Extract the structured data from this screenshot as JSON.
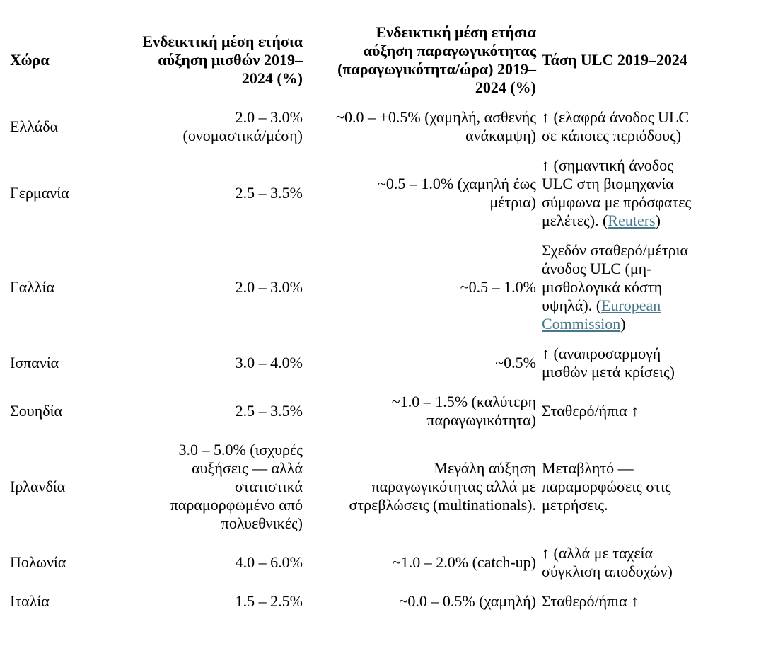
{
  "page": {
    "background_color": "#ffffff",
    "text_color": "#000000",
    "link_color": "#47798b"
  },
  "table": {
    "columns": [
      {
        "id": "country",
        "label": "Χώρα",
        "align": "left"
      },
      {
        "id": "wages",
        "label": "Ενδεικτική μέση ετήσια\nαύξηση μισθών 2019–\n2024 (%)",
        "align": "right"
      },
      {
        "id": "productivity",
        "label": "Ενδεικτική μέση ετήσια\nαύξηση παραγωγικότητας\n(παραγωγικότητα/ώρα) 2019–\n2024 (%)",
        "align": "right"
      },
      {
        "id": "ulc",
        "label": "Τάση ULC 2019–2024",
        "align": "left"
      }
    ],
    "rows": [
      {
        "country": "Ελλάδα",
        "wages": "2.0 – 3.0%\n(ονομαστικά/μέση)",
        "productivity": "~0.0 – +0.5% (χαμηλή, ασθενής\nανάκαμψη)",
        "ulc": "↑ (ελαφρά άνοδος ULC\nσε κάποιες περιόδους)"
      },
      {
        "country": "Γερμανία",
        "wages": "2.5 – 3.5%",
        "productivity": "~0.5 – 1.0% (χαμηλή έως\nμέτρια)",
        "ulc": {
          "before": "↑ (σημαντική άνοδος\nULC στη βιομηχανία\nσύμφωνα με πρόσφατες\nμελέτες). (",
          "link": "Reuters",
          "after": ")"
        }
      },
      {
        "country": "Γαλλία",
        "wages": "2.0 – 3.0%",
        "productivity": "~0.5 – 1.0%",
        "ulc": {
          "before": "Σχεδόν σταθερό/μέτρια\nάνοδος ULC (μη-\nμισθολογικά κόστη\nυψηλά). (",
          "link": "European Commission",
          "after": ")"
        }
      },
      {
        "country": "Ισπανία",
        "wages": "3.0 – 4.0%",
        "productivity": "~0.5%",
        "ulc": "↑ (αναπροσαρμογή\nμισθών μετά κρίσεις)"
      },
      {
        "country": "Σουηδία",
        "wages": "2.5 – 3.5%",
        "productivity": "~1.0 – 1.5% (καλύτερη\nπαραγωγικότητα)",
        "ulc": "Σταθερό/ήπια ↑"
      },
      {
        "country": "Ιρλανδία",
        "wages": "3.0 – 5.0% (ισχυρές\nαυξήσεις — αλλά\nστατιστικά\nπαραμορφωμένο από\nπολυεθνικές)",
        "productivity": "Μεγάλη αύξηση\nπαραγωγικότητας αλλά με\nστρεβλώσεις (multinationals).",
        "ulc": "Μεταβλητό —\nπαραμορφώσεις στις\nμετρήσεις."
      },
      {
        "country": "Πολωνία",
        "wages": "4.0 – 6.0%",
        "productivity": "~1.0 – 2.0% (catch-up)",
        "ulc": "↑ (αλλά με ταχεία\nσύγκλιση αποδοχών)"
      },
      {
        "country": "Ιταλία",
        "wages": "1.5 – 2.5%",
        "productivity": "~0.0 – 0.5% (χαμηλή)",
        "ulc": "Σταθερό/ήπια ↑"
      }
    ]
  }
}
